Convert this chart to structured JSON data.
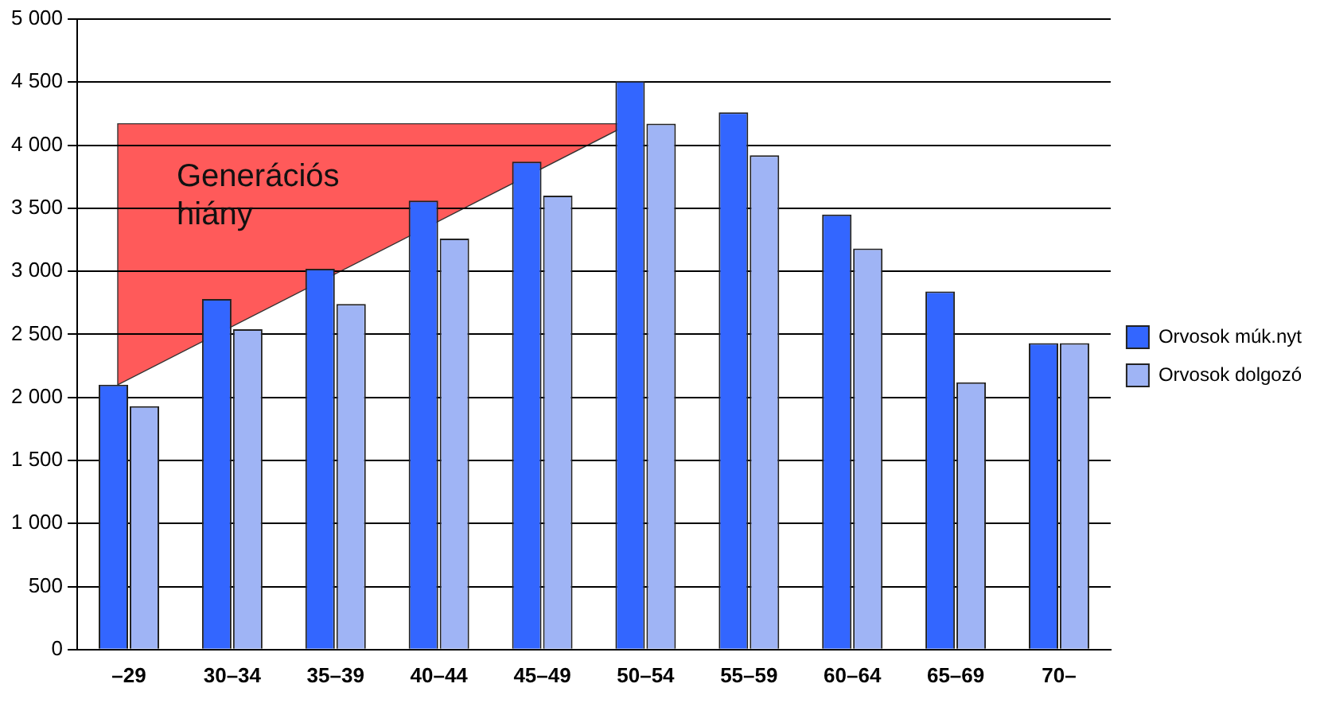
{
  "chart_data": {
    "type": "bar",
    "categories": [
      "–29",
      "30–34",
      "35–39",
      "40–44",
      "45–49",
      "50–54",
      "55–59",
      "60–64",
      "65–69",
      "70–"
    ],
    "series": [
      {
        "name": "Orvosok múk.nyt",
        "color": "#3366ff",
        "values": [
          2100,
          2780,
          3020,
          3560,
          3870,
          4510,
          4260,
          3450,
          2840,
          2430
        ]
      },
      {
        "name": "Orvosok dolgozó",
        "color": "#9fb4f5",
        "values": [
          1930,
          2540,
          2740,
          3260,
          3600,
          4170,
          3920,
          3180,
          2120,
          2430
        ]
      }
    ],
    "ylim": [
      0,
      5000
    ],
    "yticks": [
      0,
      {
        "value": 500,
        "label": "500"
      },
      {
        "value": 1000,
        "label": "1 000"
      },
      {
        "value": 1500,
        "label": "1 500"
      },
      {
        "value": 2000,
        "label": "2 000"
      },
      {
        "value": 2500,
        "label": "2 500"
      },
      {
        "value": 3000,
        "label": "3 000"
      },
      {
        "value": 3500,
        "label": "3 500"
      },
      {
        "value": 4000,
        "label": "4 000"
      },
      {
        "value": 4500,
        "label": "4 500"
      },
      {
        "value": 5000,
        "label": "5 000"
      }
    ],
    "grid": "y",
    "legend": "right",
    "annotations": [
      "Generációs hiány"
    ]
  }
}
